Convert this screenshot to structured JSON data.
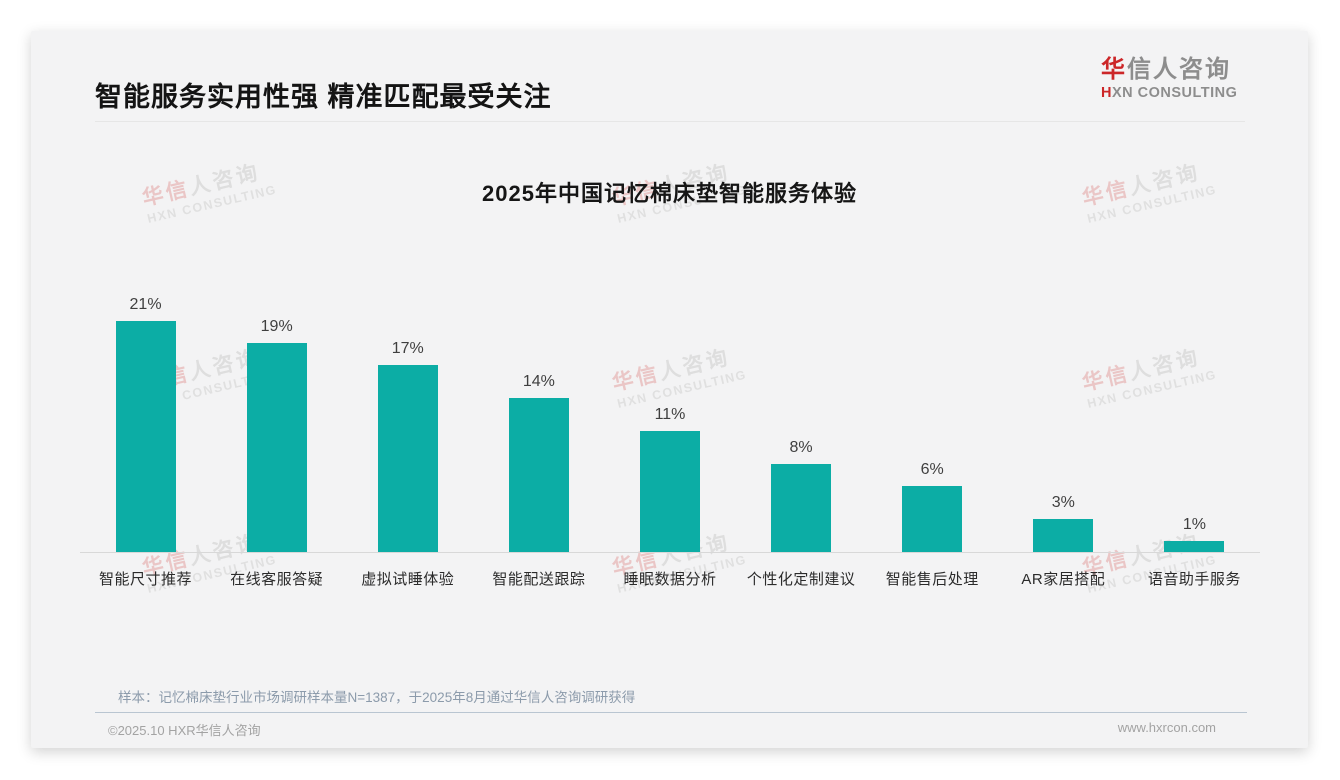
{
  "page": {
    "title": "智能服务实用性强 精准匹配最受关注",
    "note": "样本：记忆棉床垫行业市场调研样本量N=1387，于2025年8月通过华信人咨询调研获得",
    "copyright": "©2025.10 HXR华信人咨询",
    "website": "www.hxrcon.com"
  },
  "logo": {
    "cn_red": "华",
    "cn_gray": "信人咨询",
    "en_red": "H",
    "en_gray": "XN CONSULTING"
  },
  "watermark": {
    "cn_red": "华信",
    "cn_gray": "人咨询",
    "en": "HXN CONSULTING"
  },
  "colors": {
    "bar": "#0cada5",
    "accent_red": "#cc2628",
    "card_background": "#f3f3f4"
  },
  "chart_data": {
    "type": "bar",
    "title": "2025年中国记忆棉床垫智能服务体验",
    "categories": [
      "智能尺寸推荐",
      "在线客服答疑",
      "虚拟试睡体验",
      "智能配送跟踪",
      "睡眠数据分析",
      "个性化定制建议",
      "智能售后处理",
      "AR家居搭配",
      "语音助手服务"
    ],
    "values": [
      21,
      19,
      17,
      14,
      11,
      8,
      6,
      3,
      1
    ],
    "unit": "%",
    "ylim": [
      0,
      23
    ],
    "grid": false,
    "legend": false,
    "bar_color": "#0cada5",
    "value_labels_shown": true
  }
}
